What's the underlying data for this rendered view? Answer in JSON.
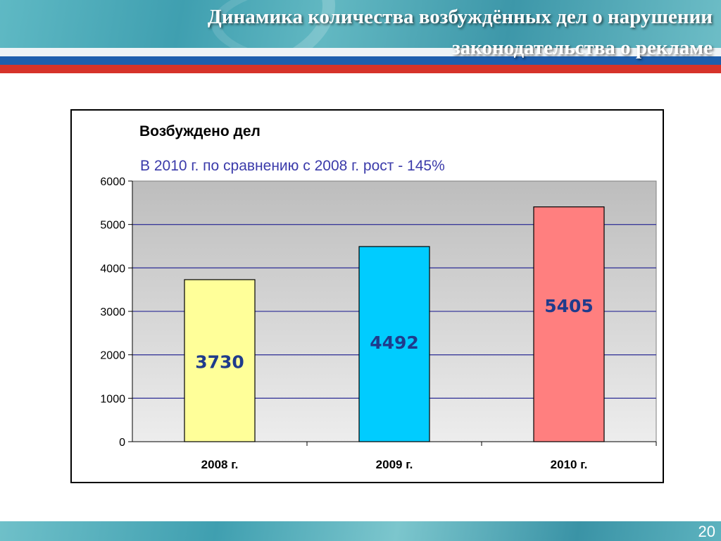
{
  "slide": {
    "title": "Динамика количества возбуждённых дел о нарушении законодательства о рекламе",
    "page_number": "20"
  },
  "colors": {
    "banner": "#3f9fb0",
    "stripe_blue": "#1e5fae",
    "stripe_red": "#d6332a",
    "gridline": "#3b3b9a",
    "label_text": "#1f3b8c",
    "subtitle_text": "#3b3baa"
  },
  "chart_data": {
    "type": "bar",
    "title": "Возбуждено дел",
    "subtitle": "В 2010 г. по сравнению с 2008 г. рост - 145%",
    "categories": [
      "2008 г.",
      "2009 г.",
      "2010 г."
    ],
    "values": [
      3730,
      4492,
      5405
    ],
    "data_labels": [
      "3730",
      "4492",
      "5405"
    ],
    "bar_colors": [
      "#ffff99",
      "#00ccff",
      "#ff7f7f"
    ],
    "ylim": [
      0,
      6000
    ],
    "yticks": [
      0,
      1000,
      2000,
      3000,
      4000,
      5000,
      6000
    ],
    "ytick_labels": [
      "0",
      "1000",
      "2000",
      "3000",
      "4000",
      "5000",
      "6000"
    ],
    "xlabel": "",
    "ylabel": "",
    "grid": true,
    "legend": "none"
  }
}
